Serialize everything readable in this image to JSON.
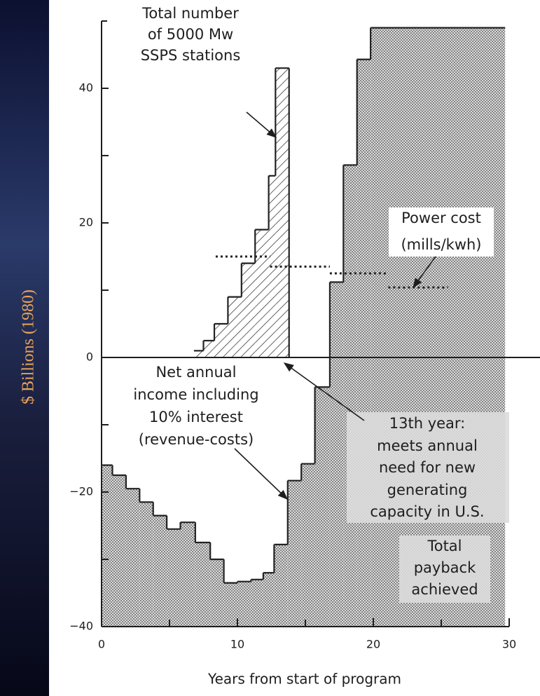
{
  "chart_data": {
    "type": "step",
    "x_label": "Years from start of program",
    "y_label": "$ Billions (1980)",
    "xlim": [
      0,
      30
    ],
    "ylim": [
      -40,
      50
    ],
    "xticks": [
      0,
      10,
      20,
      30
    ],
    "xminor": [
      5,
      15,
      25
    ],
    "yticks": [
      {
        "value": -40,
        "label": "−40"
      },
      {
        "value": -20,
        "label": "−20"
      },
      0,
      20,
      40
    ],
    "yminor": [
      -30,
      -10,
      10,
      30
    ],
    "series": [
      {
        "name": "Net annual income",
        "style": "stipple",
        "color": "#222222",
        "bins": [
          0,
          0.8,
          1.8,
          2.8,
          3.8,
          4.8,
          5.8,
          6.9,
          8,
          9,
          10,
          11,
          11.9,
          12.7,
          13.7,
          14.7,
          15.7,
          16.8,
          17.8,
          18.8,
          19.8,
          29.7
        ],
        "values": [
          -16,
          -17.5,
          -19.5,
          -21.5,
          -23.5,
          -25.5,
          -24.5,
          -27.5,
          -30,
          -33.5,
          -33.3,
          -33,
          -32,
          -27.8,
          -18.3,
          -15.8,
          -4.4,
          11.2,
          28.6,
          44.3,
          49
        ]
      },
      {
        "name": "Total number of SSPS stations",
        "style": "hatch",
        "color": "#222222",
        "bins": [
          6.8,
          7.5,
          8.3,
          9.3,
          10.3,
          11.3,
          12.3,
          12.8,
          13.8
        ],
        "values": [
          1,
          2.5,
          5,
          9,
          14,
          19,
          27,
          43
        ]
      },
      {
        "name": "Power cost",
        "style": "dotted",
        "color": "#222222",
        "bins": [
          8.4,
          12.4,
          16.8,
          21.1,
          25.5
        ],
        "values": [
          15,
          13.5,
          12.5,
          10.4
        ]
      }
    ],
    "annotations": [
      {
        "lines": [
          "Total number",
          "of 5000 Mw",
          "SSPS stations"
        ]
      },
      {
        "lines": [
          "Power cost",
          "(mills/kwh)"
        ]
      },
      {
        "lines": [
          "Net annual",
          "income including",
          "10% interest",
          "(revenue-costs)"
        ]
      },
      {
        "lines": [
          "13th year:",
          "meets annual",
          "need for new",
          "generating",
          "capacity in U.S."
        ]
      },
      {
        "lines": [
          "Total",
          "payback",
          "achieved"
        ]
      }
    ]
  }
}
